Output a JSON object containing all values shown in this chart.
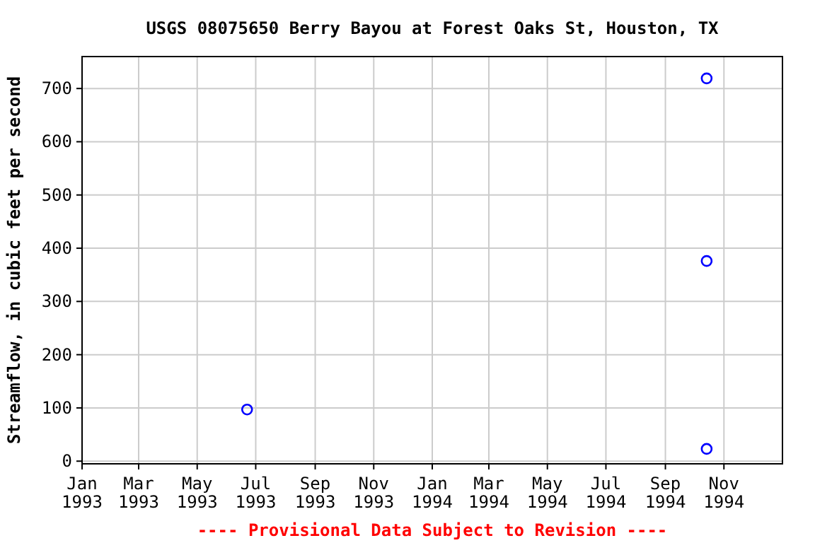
{
  "chart_data": {
    "type": "scatter",
    "title": "USGS 08075650 Berry Bayou at Forest Oaks St, Houston, TX",
    "ylabel": "Streamflow, in cubic feet per second",
    "annotations": [
      "---- Provisional Data Subject to Revision ----"
    ],
    "x": [
      "1993-06-22",
      "1994-10-14",
      "1994-10-14",
      "1994-10-14"
    ],
    "series": [
      {
        "color": "#0000ff",
        "values": [
          97,
          719,
          376,
          23
        ]
      }
    ],
    "xlim": [
      "1993-01-01",
      "1995-01-01"
    ],
    "xticks": [
      {
        "value": "1993-01-01",
        "label": "Jan\n1993"
      },
      {
        "value": "1993-03-01",
        "label": "Mar\n1993"
      },
      {
        "value": "1993-05-01",
        "label": "May\n1993"
      },
      {
        "value": "1993-07-01",
        "label": "Jul\n1993"
      },
      {
        "value": "1993-09-01",
        "label": "Sep\n1993"
      },
      {
        "value": "1993-11-01",
        "label": "Nov\n1993"
      },
      {
        "value": "1994-01-01",
        "label": "Jan\n1994"
      },
      {
        "value": "1994-03-01",
        "label": "Mar\n1994"
      },
      {
        "value": "1994-05-01",
        "label": "May\n1994"
      },
      {
        "value": "1994-07-01",
        "label": "Jul\n1994"
      },
      {
        "value": "1994-09-01",
        "label": "Sep\n1994"
      },
      {
        "value": "1994-11-01",
        "label": "Nov\n1994"
      }
    ],
    "ylim": [
      -5,
      760
    ],
    "yticks": [
      0,
      100,
      200,
      300,
      400,
      500,
      600,
      700
    ],
    "grid": true,
    "marker": "circle"
  }
}
